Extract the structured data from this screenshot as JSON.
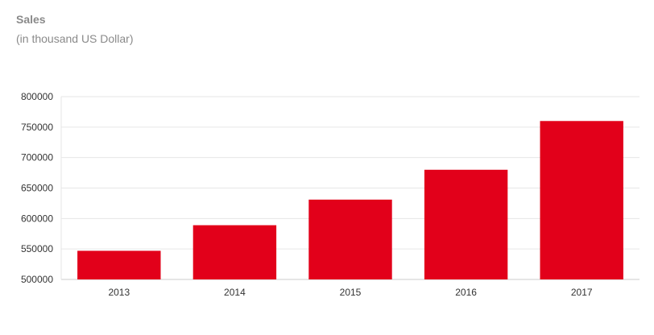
{
  "chart_data": {
    "type": "bar",
    "title": "Sales",
    "subtitle": "(in thousand US Dollar)",
    "categories": [
      "2013",
      "2014",
      "2015",
      "2016",
      "2017"
    ],
    "values": [
      547000,
      589000,
      631000,
      680000,
      760000
    ],
    "ylim": [
      500000,
      800000
    ],
    "yticks": [
      500000,
      550000,
      600000,
      650000,
      700000,
      750000,
      800000
    ],
    "grid": true,
    "legend": "none",
    "bar_color": "#e2001a"
  }
}
